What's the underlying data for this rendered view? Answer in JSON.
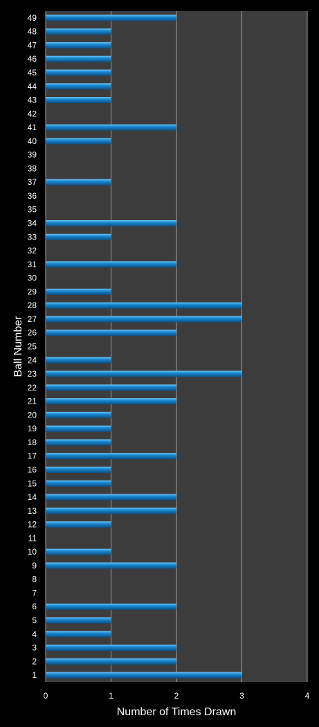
{
  "chart_data": {
    "type": "bar",
    "orientation": "horizontal",
    "xlabel": "Number of Times Drawn",
    "ylabel": "Ball Number",
    "xlim": [
      0,
      4
    ],
    "x_ticks": [
      "0",
      "1",
      "2",
      "3",
      "4"
    ],
    "grid": "vertical",
    "categories": [
      "1",
      "2",
      "3",
      "4",
      "5",
      "6",
      "7",
      "8",
      "9",
      "10",
      "11",
      "12",
      "13",
      "14",
      "15",
      "16",
      "17",
      "18",
      "19",
      "20",
      "21",
      "22",
      "23",
      "24",
      "25",
      "26",
      "27",
      "28",
      "29",
      "30",
      "31",
      "32",
      "33",
      "34",
      "35",
      "36",
      "37",
      "38",
      "39",
      "40",
      "41",
      "42",
      "43",
      "44",
      "45",
      "46",
      "47",
      "48",
      "49"
    ],
    "values": [
      3,
      2,
      2,
      1,
      1,
      2,
      0,
      0,
      2,
      1,
      0,
      1,
      2,
      2,
      1,
      1,
      2,
      1,
      1,
      1,
      2,
      2,
      3,
      1,
      0,
      2,
      3,
      3,
      1,
      0,
      2,
      0,
      1,
      2,
      0,
      0,
      1,
      0,
      0,
      1,
      2,
      0,
      1,
      1,
      1,
      1,
      1,
      1,
      2
    ],
    "colors": {
      "background": "#000000",
      "plot_area": "#3c3c3c",
      "bar": "#1a8ad4",
      "bar_highlight": "#6cc4f4",
      "bar_shadow": "#0b4f86",
      "gridline": "#a0a0a0",
      "text": "#ffffff"
    }
  }
}
